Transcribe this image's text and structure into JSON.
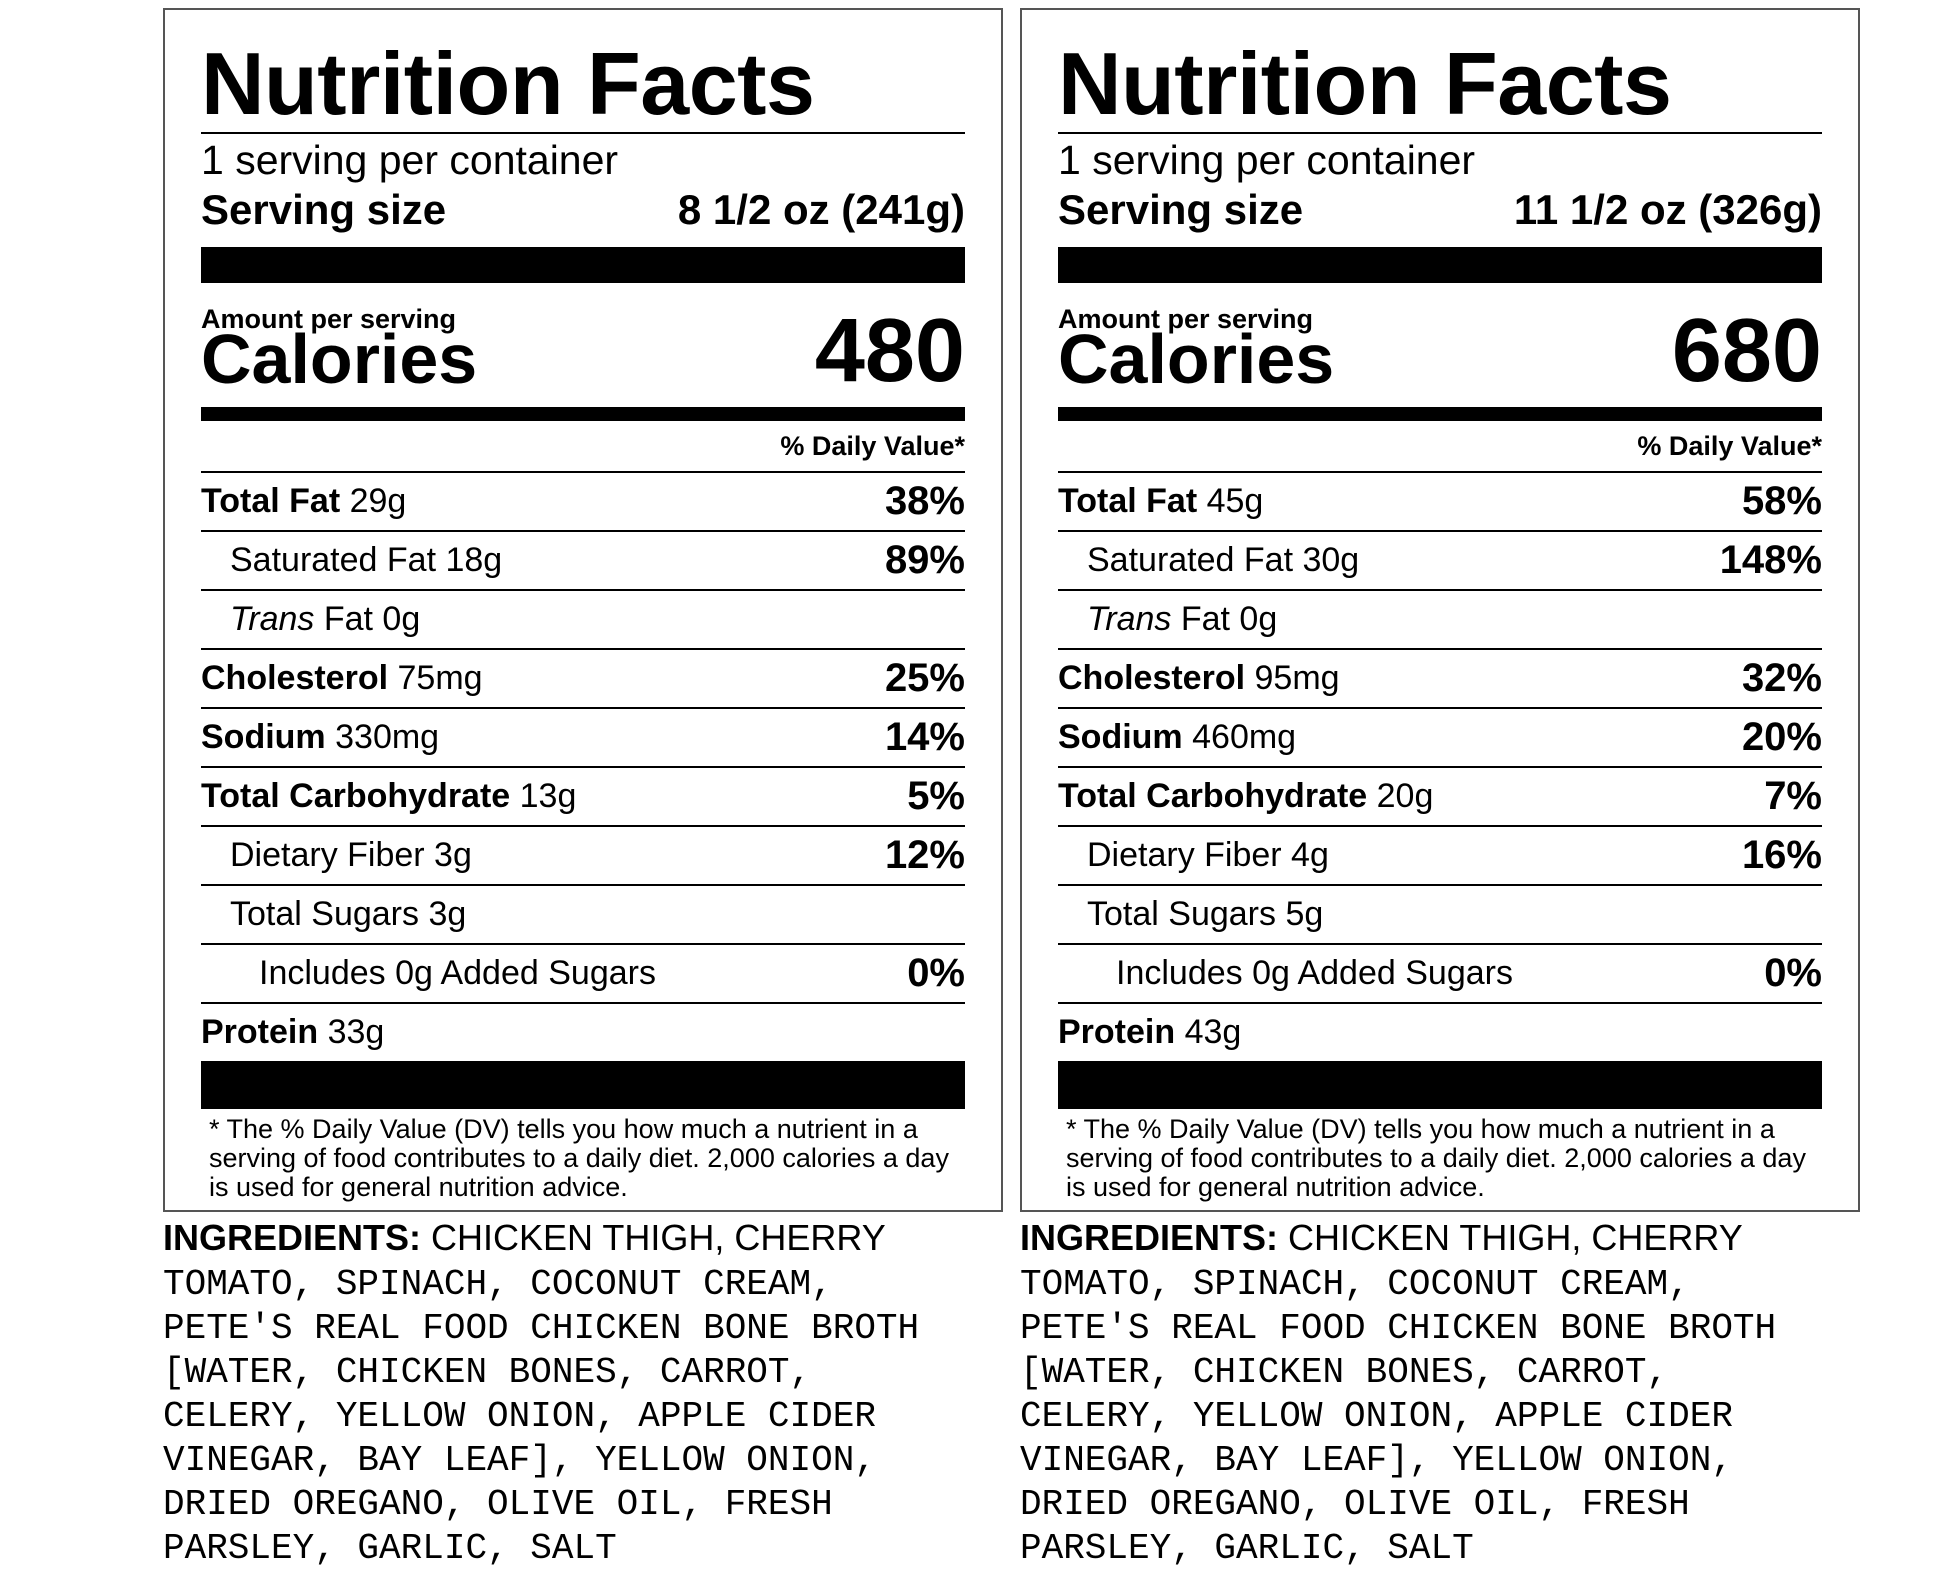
{
  "labels": [
    {
      "title": "Nutrition Facts",
      "servings_per_container": "1 serving per container",
      "serving_size_label": "Serving size",
      "serving_size_value": "8 1/2 oz (241g)",
      "amount_per_serving": "Amount per serving",
      "calories_label": "Calories",
      "calories_value": "480",
      "dv_header": "% Daily Value*",
      "rows": {
        "total_fat": {
          "name": "Total Fat",
          "amount": "29g",
          "dv": "38%"
        },
        "saturated_fat": {
          "name": "Saturated Fat 18g",
          "dv": "89%"
        },
        "trans_fat": {
          "name_italic": "Trans",
          "name_rest": " Fat 0g"
        },
        "cholesterol": {
          "name": "Cholesterol",
          "amount": "75mg",
          "dv": "25%"
        },
        "sodium": {
          "name": "Sodium",
          "amount": "330mg",
          "dv": "14%"
        },
        "total_carbohydrate": {
          "name": "Total Carbohydrate",
          "amount": "13g",
          "dv": "5%"
        },
        "dietary_fiber": {
          "name": "Dietary Fiber 3g",
          "dv": "12%"
        },
        "total_sugars": {
          "name": "Total Sugars 3g"
        },
        "added_sugars": {
          "name": "Includes 0g Added Sugars",
          "dv": "0%"
        },
        "protein": {
          "name": "Protein",
          "amount": "33g"
        }
      },
      "footnote": "* The % Daily Value (DV) tells you how much a nutrient in a serving of food contributes to a daily diet. 2,000 calories a day is used for general nutrition advice.",
      "ingredients_label": "INGREDIENTS:",
      "ingredients_first": " CHICKEN THIGH, CHERRY",
      "ingredients_rest": "TOMATO, SPINACH, COCONUT CREAM,\nPETE'S REAL FOOD CHICKEN BONE BROTH\n[WATER, CHICKEN BONES, CARROT,\nCELERY, YELLOW ONION, APPLE CIDER\nVINEGAR, BAY LEAF], YELLOW ONION,\nDRIED OREGANO, OLIVE OIL, FRESH\nPARSLEY, GARLIC, SALT"
    },
    {
      "title": "Nutrition Facts",
      "servings_per_container": "1 serving per container",
      "serving_size_label": "Serving size",
      "serving_size_value": "11 1/2 oz (326g)",
      "amount_per_serving": "Amount per serving",
      "calories_label": "Calories",
      "calories_value": "680",
      "dv_header": "% Daily Value*",
      "rows": {
        "total_fat": {
          "name": "Total Fat",
          "amount": "45g",
          "dv": "58%"
        },
        "saturated_fat": {
          "name": "Saturated Fat 30g",
          "dv": "148%"
        },
        "trans_fat": {
          "name_italic": "Trans",
          "name_rest": " Fat 0g"
        },
        "cholesterol": {
          "name": "Cholesterol",
          "amount": "95mg",
          "dv": "32%"
        },
        "sodium": {
          "name": "Sodium",
          "amount": "460mg",
          "dv": "20%"
        },
        "total_carbohydrate": {
          "name": "Total Carbohydrate",
          "amount": "20g",
          "dv": "7%"
        },
        "dietary_fiber": {
          "name": "Dietary Fiber 4g",
          "dv": "16%"
        },
        "total_sugars": {
          "name": "Total Sugars 5g"
        },
        "added_sugars": {
          "name": "Includes 0g Added Sugars",
          "dv": "0%"
        },
        "protein": {
          "name": "Protein",
          "amount": "43g"
        }
      },
      "footnote": "* The % Daily Value (DV) tells you how much a nutrient in a serving of food contributes to a daily diet. 2,000 calories a day is used for general nutrition advice.",
      "ingredients_label": "INGREDIENTS:",
      "ingredients_first": " CHICKEN THIGH, CHERRY",
      "ingredients_rest": "TOMATO, SPINACH, COCONUT CREAM,\nPETE'S REAL FOOD CHICKEN BONE BROTH\n[WATER, CHICKEN BONES, CARROT,\nCELERY, YELLOW ONION, APPLE CIDER\nVINEGAR, BAY LEAF], YELLOW ONION,\nDRIED OREGANO, OLIVE OIL, FRESH\nPARSLEY, GARLIC, SALT"
    }
  ]
}
